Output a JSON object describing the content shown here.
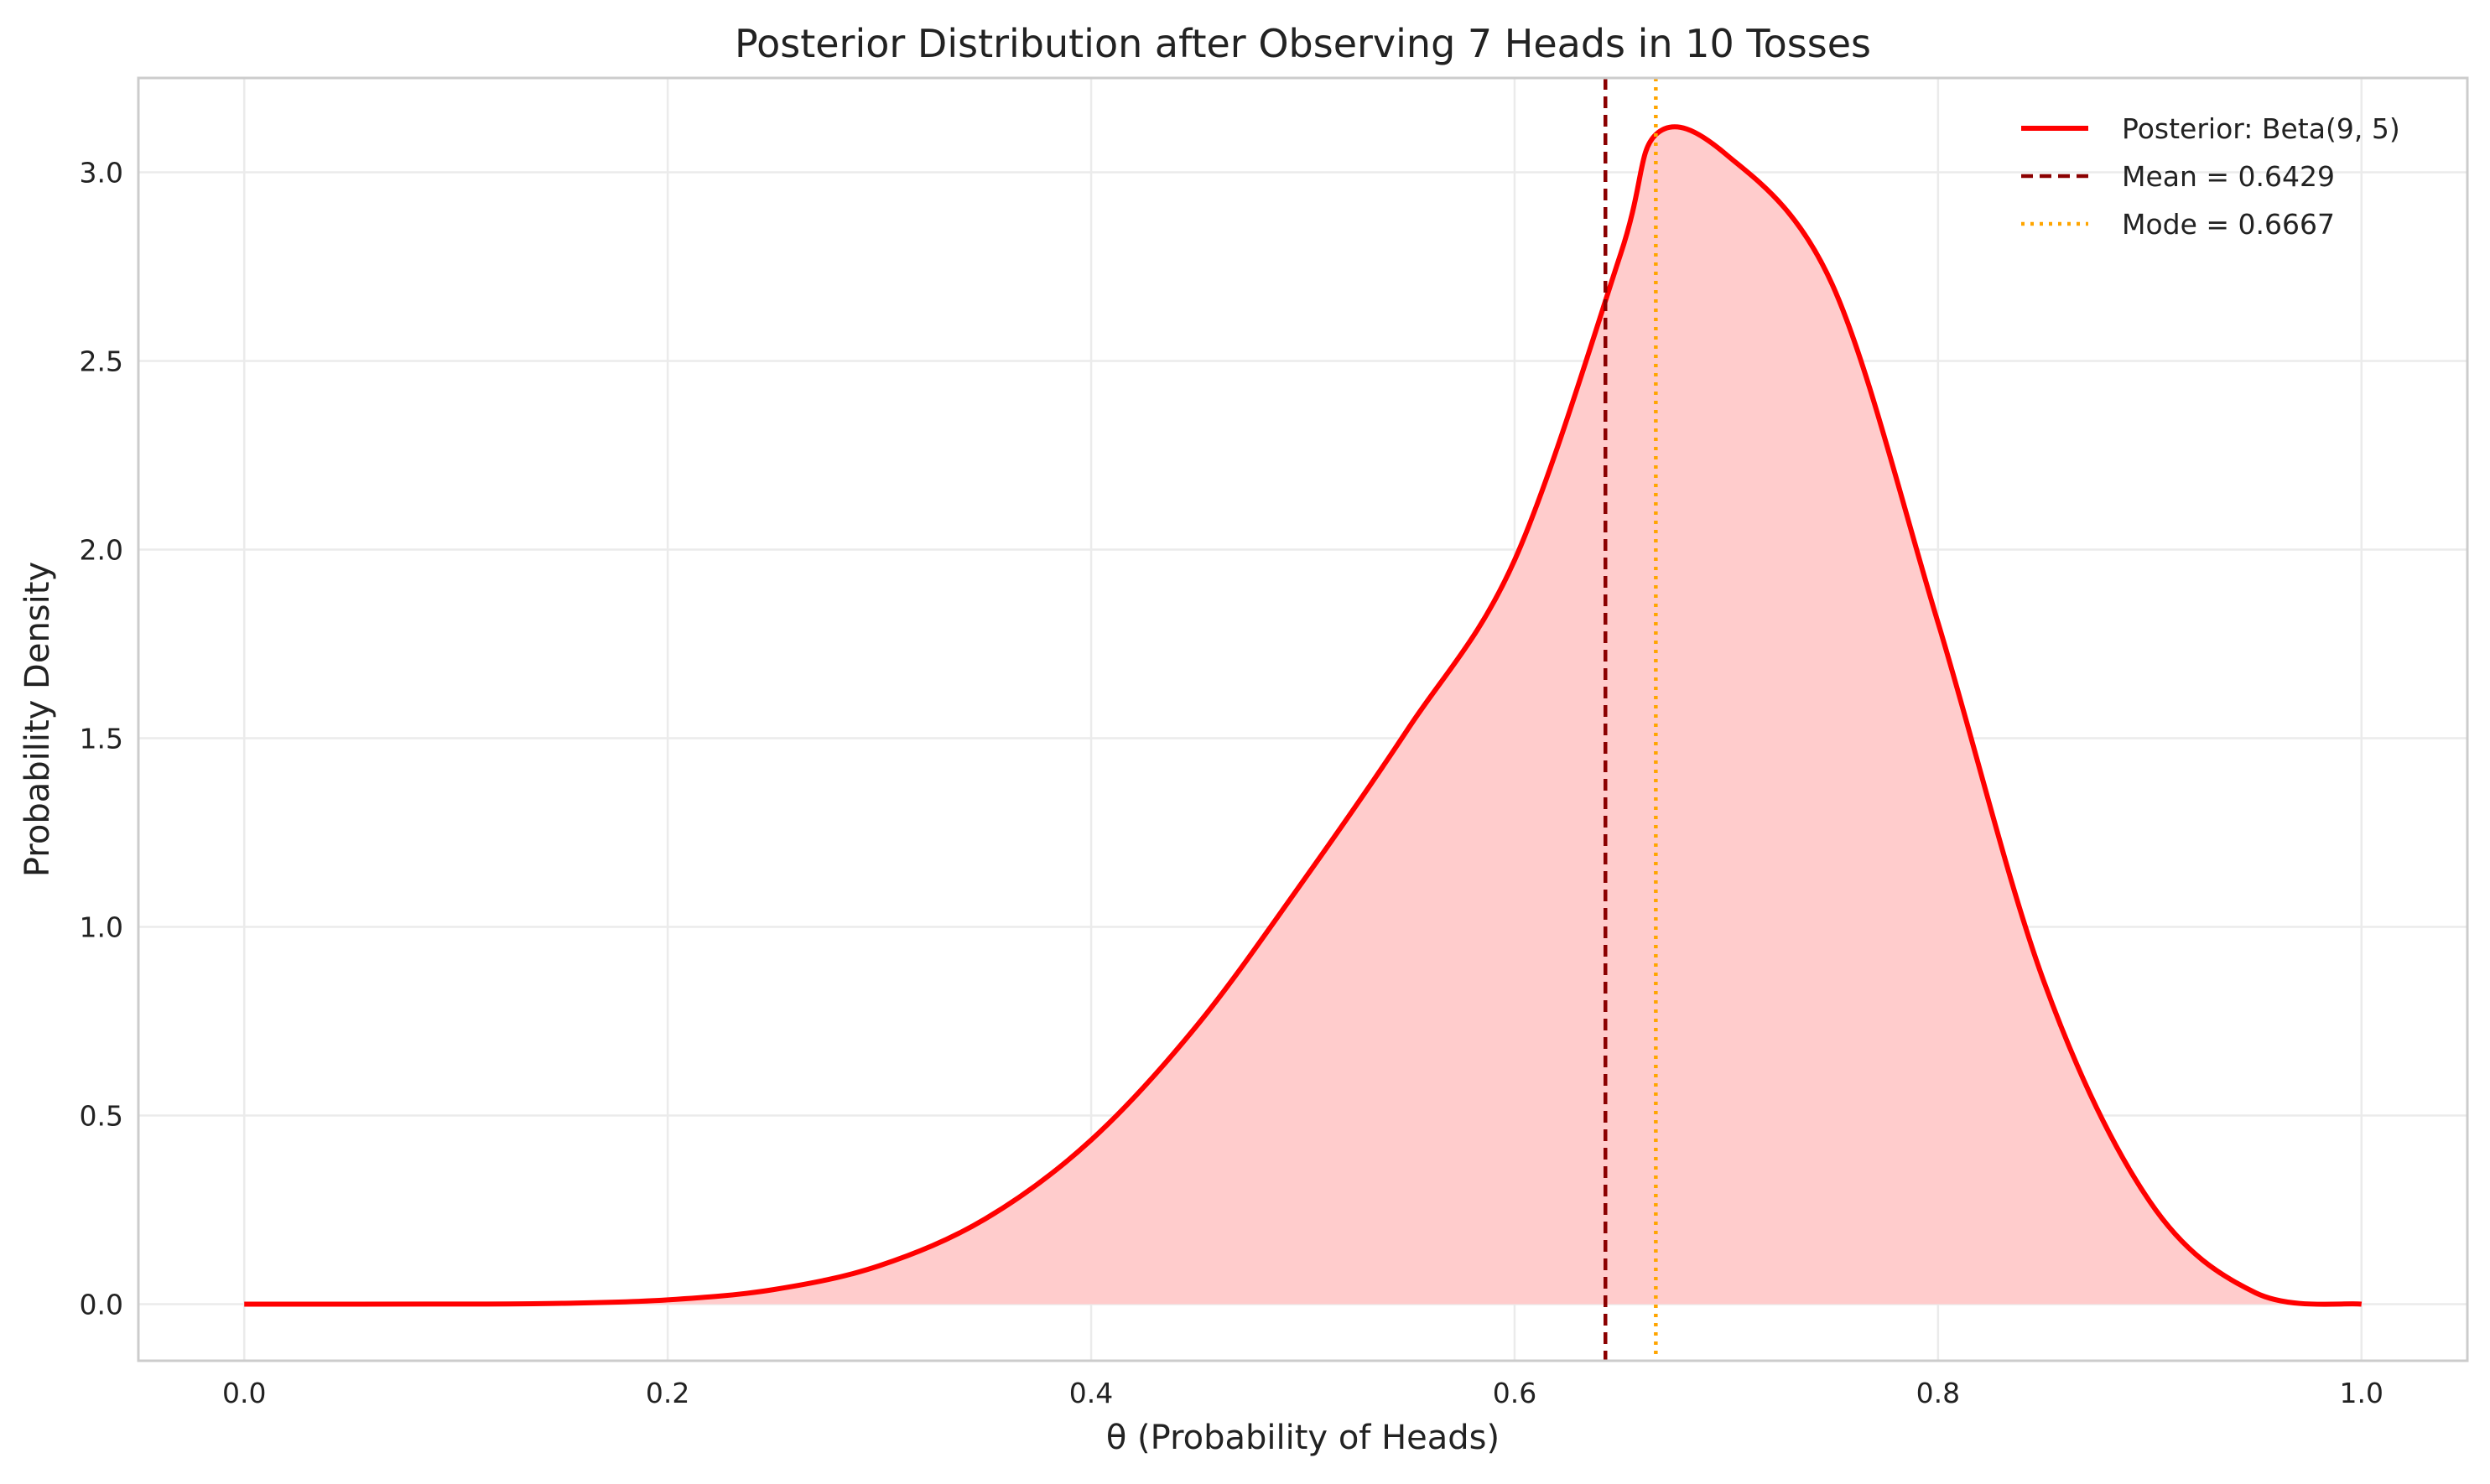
{
  "chart_data": {
    "type": "line",
    "title": "Posterior Distribution after Observing 7 Heads in 10 Tosses",
    "xlabel": "θ (Probability of Heads)",
    "ylabel": "Probability Density",
    "xlim": [
      -0.05,
      1.05
    ],
    "ylim": [
      -0.15,
      3.25
    ],
    "grid": true,
    "legend_position": "top-right",
    "x_ticks": [
      "0.0",
      "0.2",
      "0.4",
      "0.6",
      "0.8",
      "1.0"
    ],
    "y_ticks": [
      "0.0",
      "0.5",
      "1.0",
      "1.5",
      "2.0",
      "2.5",
      "3.0"
    ],
    "series": [
      {
        "name": "Posterior: Beta(9, 5)",
        "style": "solid",
        "color": "#ff0000",
        "fill_color": "#ffcccc",
        "x": [
          0.0,
          0.05,
          0.1,
          0.15,
          0.2,
          0.25,
          0.3,
          0.35,
          0.4,
          0.45,
          0.5,
          0.55,
          0.6,
          0.65,
          0.6667,
          0.7,
          0.75,
          0.8,
          0.85,
          0.9,
          0.95,
          1.0
        ],
        "y": [
          0.0,
          0.0,
          0.0002,
          0.0022,
          0.0113,
          0.0386,
          0.1019,
          0.2261,
          0.435,
          0.7388,
          1.1206,
          1.5276,
          1.972,
          2.782,
          3.1,
          3.047,
          2.703,
          1.806,
          0.855,
          0.272,
          0.03,
          0.0
        ]
      }
    ],
    "vlines": [
      {
        "label": "Mean = 0.6429",
        "x": 0.6429,
        "style": "dashed",
        "color": "#8b0000"
      },
      {
        "label": "Mode = 0.6667",
        "x": 0.6667,
        "style": "dotted",
        "color": "#ffa500"
      }
    ]
  }
}
